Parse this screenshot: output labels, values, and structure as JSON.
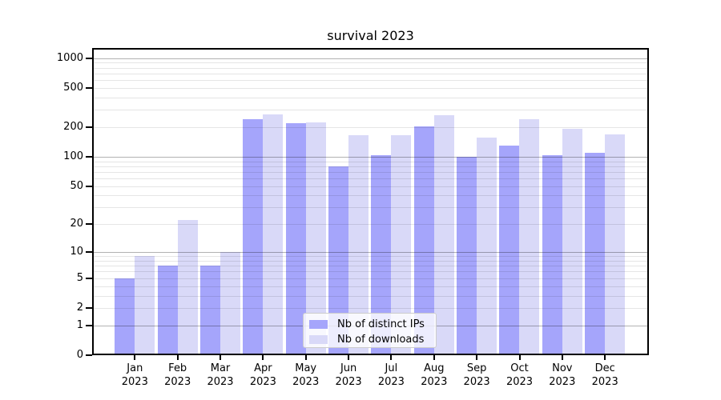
{
  "chart_data": {
    "type": "bar",
    "title": "survival 2023",
    "categories": [
      "Jan",
      "Feb",
      "Mar",
      "Apr",
      "May",
      "Jun",
      "Jul",
      "Aug",
      "Sep",
      "Oct",
      "Nov",
      "Dec"
    ],
    "x_year_label": "2023",
    "series": [
      {
        "name": "Nb of distinct IPs",
        "color": "#a5a5fb",
        "values": [
          5,
          7,
          7,
          240,
          219,
          79,
          104,
          203,
          100,
          130,
          104,
          110
        ]
      },
      {
        "name": "Nb of downloads",
        "color": "#d9d9f8",
        "values": [
          9,
          22,
          10,
          268,
          224,
          165,
          165,
          266,
          156,
          240,
          192,
          169
        ]
      }
    ],
    "yscale": "log1p",
    "ylim": [
      0,
      1264
    ],
    "yticks": [
      0,
      1,
      2,
      5,
      10,
      20,
      50,
      100,
      200,
      500,
      1000
    ],
    "grid": "both",
    "legend_position": "lower-center",
    "colors": {
      "major_grid": "#0000004d",
      "minor_grid": "#0000001a",
      "spine": "#000000",
      "legend_border": "#cccccc",
      "legend_bg": "#ffffffcc",
      "text": "#000000"
    }
  }
}
